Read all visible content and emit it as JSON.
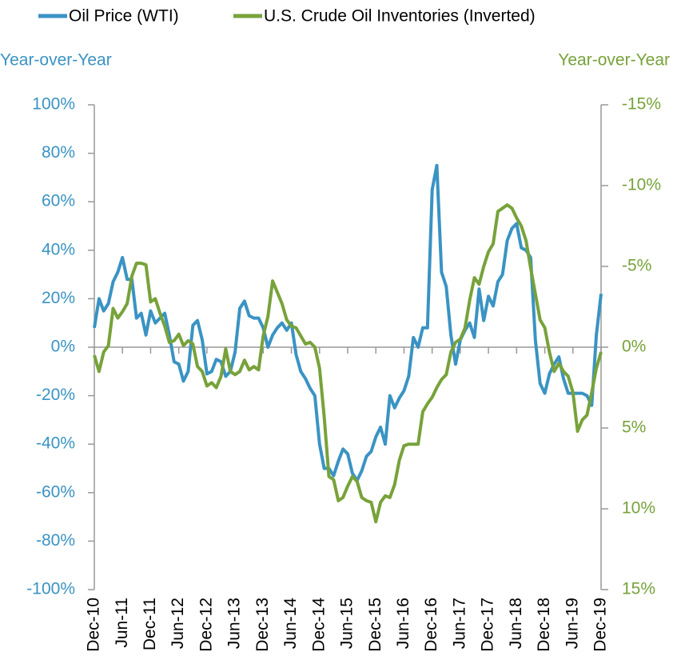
{
  "chart_data": {
    "type": "line",
    "y_label": "Year-over-Year",
    "y2_label": "Year-over-Year",
    "categories": [
      "Dec-10",
      null,
      null,
      null,
      null,
      null,
      "Jun-11",
      null,
      null,
      null,
      null,
      null,
      "Dec-11",
      null,
      null,
      null,
      null,
      null,
      "Jun-12",
      null,
      null,
      null,
      null,
      null,
      "Dec-12",
      null,
      null,
      null,
      null,
      null,
      "Jun-13",
      null,
      null,
      null,
      null,
      null,
      "Dec-13",
      null,
      null,
      null,
      null,
      null,
      "Jun-14",
      null,
      null,
      null,
      null,
      null,
      "Dec-14",
      null,
      null,
      null,
      null,
      null,
      "Jun-15",
      null,
      null,
      null,
      null,
      null,
      "Dec-15",
      null,
      null,
      null,
      null,
      null,
      "Jun-16",
      null,
      null,
      null,
      null,
      null,
      "Dec-16",
      null,
      null,
      null,
      null,
      null,
      "Jun-17",
      null,
      null,
      null,
      null,
      null,
      "Dec-17",
      null,
      null,
      null,
      null,
      null,
      "Jun-18",
      null,
      null,
      null,
      null,
      null,
      "Dec-18",
      null,
      null,
      null,
      null,
      null,
      "Jun-19",
      null,
      null,
      null,
      null,
      null,
      "Dec-19"
    ],
    "series": [
      {
        "name": "Oil Price (WTI)",
        "color": "#3a93c3",
        "axis": "y",
        "values": [
          8,
          20,
          15,
          18,
          27,
          31,
          37,
          28,
          28,
          12,
          14,
          5,
          15,
          10,
          12,
          14,
          5,
          -6,
          -7,
          -14,
          -10,
          9,
          11,
          3,
          -11,
          -10,
          -5,
          -6,
          -12,
          -10,
          -2,
          16,
          19,
          13,
          12,
          12,
          8,
          0,
          5,
          8,
          10,
          7,
          10,
          -3,
          -10,
          -13,
          -17,
          -20,
          -40,
          -50,
          -50,
          -53,
          -47,
          -42,
          -44,
          -52,
          -55,
          -51,
          -45,
          -43,
          -37,
          -33,
          -40,
          -20,
          -25,
          -21,
          -18,
          -12,
          4,
          0,
          8,
          8,
          65,
          75,
          31,
          25,
          5,
          -7,
          3,
          7,
          10,
          4,
          24,
          11,
          21,
          17,
          27,
          30,
          44,
          49,
          51,
          41,
          40,
          37,
          3,
          -15,
          -19,
          -11,
          -7,
          -4,
          -13,
          -19,
          -19,
          -19,
          -19,
          -20,
          -24,
          5,
          22
        ]
      },
      {
        "name": "U.S. Crude Oil Inventories (Inverted)",
        "color": "#77a23a",
        "axis": "y2",
        "values": [
          0.5,
          1.5,
          0.3,
          -0.1,
          -2.4,
          -1.8,
          -2.2,
          -2.7,
          -4.4,
          -5.2,
          -5.2,
          -5.1,
          -2.8,
          -3.0,
          -2.1,
          -1.3,
          -0.3,
          -0.4,
          -0.8,
          -0.1,
          -0.4,
          -0.2,
          1.2,
          1.5,
          2.4,
          2.2,
          2.5,
          1.8,
          0.1,
          1.5,
          1.7,
          1.5,
          0.8,
          1.4,
          1.2,
          1.4,
          -0.7,
          -1.9,
          -4.1,
          -3.4,
          -2.7,
          -1.7,
          -1.3,
          -1.2,
          -0.7,
          -0.2,
          -0.3,
          0,
          1.3,
          4.3,
          8.0,
          8.2,
          9.5,
          9.3,
          8.6,
          8.0,
          8.3,
          9.3,
          9.5,
          9.6,
          10.8,
          9.6,
          9.2,
          9.3,
          8.5,
          7.0,
          6.1,
          6.0,
          6.0,
          6.0,
          4.0,
          3.5,
          3.1,
          2.5,
          2.0,
          1.7,
          0.3,
          -0.3,
          -0.5,
          -1.2,
          -2.9,
          -4.3,
          -3.9,
          -5.0,
          -5.9,
          -6.4,
          -8.4,
          -8.6,
          -8.8,
          -8.6,
          -8.0,
          -7.5,
          -6.6,
          -4.9,
          -3.3,
          -1.7,
          -1.2,
          0.3,
          1.5,
          1.0,
          1.5,
          1.8,
          2.8,
          5.2,
          4.5,
          4.2,
          2.8,
          1.3,
          0.3
        ]
      }
    ],
    "ylim": [
      -100,
      100
    ],
    "yticks": [
      {
        "value": 100,
        "label": "100%"
      },
      {
        "value": 80,
        "label": "80%"
      },
      {
        "value": 60,
        "label": "60%"
      },
      {
        "value": 40,
        "label": "40%"
      },
      {
        "value": 20,
        "label": "20%"
      },
      {
        "value": 0,
        "label": "0%"
      },
      {
        "value": -20,
        "label": "-20%"
      },
      {
        "value": -40,
        "label": "-40%"
      },
      {
        "value": -60,
        "label": "-60%"
      },
      {
        "value": -80,
        "label": "-80%"
      },
      {
        "value": -100,
        "label": "-100%"
      }
    ],
    "y2lim": [
      15,
      -15
    ],
    "y2ticks": [
      {
        "value": -15,
        "label": "-15%"
      },
      {
        "value": -10,
        "label": "-10%"
      },
      {
        "value": -5,
        "label": "-5%"
      },
      {
        "value": 0,
        "label": "0%"
      },
      {
        "value": 5,
        "label": "5%"
      },
      {
        "value": 10,
        "label": "10%"
      },
      {
        "value": 15,
        "label": "15%"
      }
    ]
  }
}
